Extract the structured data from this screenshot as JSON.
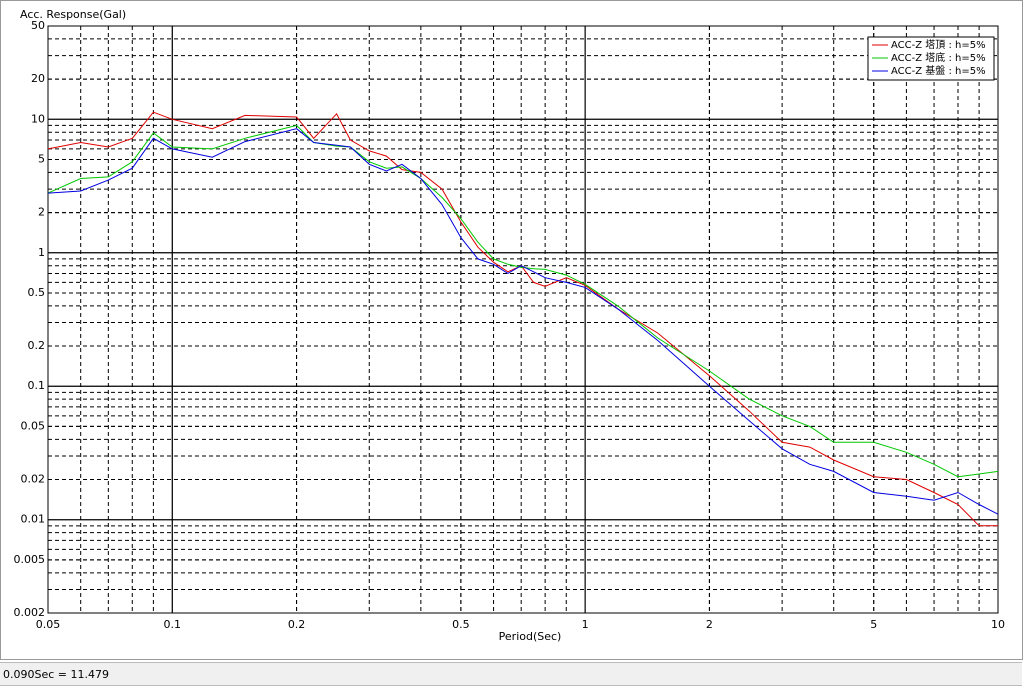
{
  "chart_data": {
    "type": "line",
    "ylabel": "Acc. Response(Gal)",
    "xlabel": "Period(Sec)",
    "xscale": "log",
    "yscale": "log",
    "grid": true,
    "legend": "upper right",
    "xlim": [
      0.05,
      10
    ],
    "ylim": [
      0.002,
      50
    ],
    "xticks": [
      0.05,
      0.1,
      0.2,
      0.5,
      1,
      2,
      5,
      10
    ],
    "yticks": [
      50,
      20,
      10,
      5,
      2,
      1,
      0.5,
      0.2,
      0.1,
      0.05,
      0.02,
      0.01,
      0.005,
      0.002
    ],
    "x": [
      0.05,
      0.06,
      0.07,
      0.08,
      0.09,
      0.1,
      0.125,
      0.15,
      0.2,
      0.22,
      0.25,
      0.27,
      0.3,
      0.33,
      0.36,
      0.4,
      0.45,
      0.5,
      0.55,
      0.6,
      0.65,
      0.7,
      0.75,
      0.8,
      0.9,
      1,
      1.2,
      1.5,
      2,
      2.5,
      3,
      3.5,
      4,
      5,
      6,
      7,
      8,
      9,
      10
    ],
    "series": [
      {
        "name": "ACC-Z 塔頂 : h=5%",
        "color": "#e00000",
        "values": [
          6.0,
          6.7,
          6.2,
          7.2,
          11.3,
          10.0,
          8.5,
          10.7,
          10.4,
          7.2,
          11.0,
          7.0,
          5.8,
          5.3,
          4.2,
          4.0,
          3.0,
          1.7,
          1.1,
          0.85,
          0.72,
          0.8,
          0.6,
          0.56,
          0.65,
          0.57,
          0.38,
          0.25,
          0.12,
          0.065,
          0.038,
          0.035,
          0.028,
          0.021,
          0.02,
          0.016,
          0.013,
          0.009,
          0.009
        ]
      },
      {
        "name": "ACC-Z 塔底 : h=5%",
        "color": "#00c800",
        "values": [
          2.8,
          3.6,
          3.7,
          4.8,
          7.9,
          6.2,
          6.0,
          7.2,
          9.0,
          6.7,
          6.3,
          6.2,
          4.8,
          4.3,
          4.4,
          3.6,
          2.6,
          1.8,
          1.2,
          0.9,
          0.82,
          0.78,
          0.76,
          0.75,
          0.68,
          0.58,
          0.4,
          0.23,
          0.13,
          0.08,
          0.06,
          0.05,
          0.038,
          0.038,
          0.032,
          0.026,
          0.021,
          0.022,
          0.023
        ]
      },
      {
        "name": "ACC-Z 基盤 : h=5%",
        "color": "#0000e0",
        "values": [
          2.8,
          2.9,
          3.5,
          4.3,
          7.2,
          6.0,
          5.2,
          6.8,
          8.5,
          6.7,
          6.4,
          6.2,
          4.6,
          4.1,
          4.6,
          3.6,
          2.3,
          1.3,
          0.9,
          0.82,
          0.7,
          0.8,
          0.72,
          0.65,
          0.6,
          0.55,
          0.38,
          0.22,
          0.1,
          0.055,
          0.034,
          0.026,
          0.023,
          0.016,
          0.015,
          0.014,
          0.016,
          0.013,
          0.011
        ]
      }
    ]
  },
  "status_text": "0.090Sec = 11.479"
}
